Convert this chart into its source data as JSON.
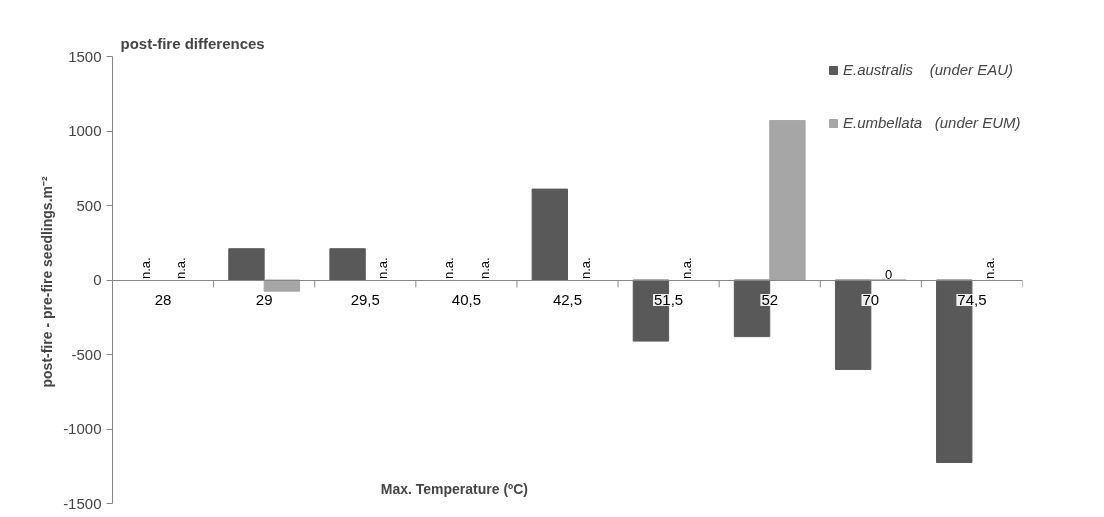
{
  "chart_data": {
    "type": "bar",
    "title": "post-fire differences",
    "xlabel": "Max. Temperature  (ºC)",
    "ylabel": "post-fire - pre-fire  seedlings.m⁻²",
    "categories": [
      "28",
      "29",
      "29,5",
      "40,5",
      "42,5",
      "51,5",
      "52",
      "70",
      "74,5"
    ],
    "series": [
      {
        "name": "E.australis    (under EAU)",
        "color": "#595959",
        "values": [
          null,
          210,
          210,
          null,
          610,
          -410,
          -380,
          -600,
          -1225
        ],
        "value_labels": [
          "n.a.",
          null,
          null,
          "n.a.",
          null,
          null,
          null,
          null,
          null
        ]
      },
      {
        "name": "E.umbellata   (under EUM)",
        "color": "#a6a6a6",
        "values": [
          null,
          -75,
          null,
          null,
          null,
          null,
          1070,
          0,
          null
        ],
        "value_labels": [
          "n.a.",
          null,
          "n.a.",
          "n.a.",
          "n.a.",
          "n.a.",
          null,
          "0",
          "n.a."
        ]
      }
    ],
    "ylim": [
      -1500,
      1500
    ],
    "yticks": [
      -1500,
      -1000,
      -500,
      0,
      500,
      1000,
      1500
    ],
    "grid": false,
    "legend": "top right"
  }
}
